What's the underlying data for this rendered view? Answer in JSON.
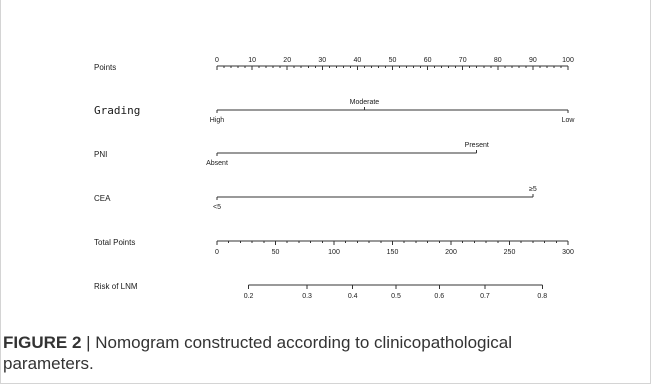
{
  "chart_data": {
    "type": "nomogram",
    "rows": [
      {
        "label": "Points",
        "kind": "scale",
        "min": 0,
        "max": 100,
        "major": [
          0,
          10,
          20,
          30,
          40,
          50,
          60,
          70,
          80,
          90,
          100
        ],
        "minor_step": 2
      },
      {
        "label": "Grading",
        "kind": "categorical",
        "levels": [
          {
            "name": "High",
            "points": 0,
            "label_side": "below"
          },
          {
            "name": "Moderate",
            "points": 42,
            "label_side": "above"
          },
          {
            "name": "Low",
            "points": 100,
            "label_side": "below"
          }
        ]
      },
      {
        "label": "PNI",
        "kind": "categorical",
        "levels": [
          {
            "name": "Absent",
            "points": 0,
            "label_side": "below"
          },
          {
            "name": "Present",
            "points": 74,
            "label_side": "above"
          }
        ]
      },
      {
        "label": "CEA",
        "kind": "categorical",
        "levels": [
          {
            "name": "<5",
            "points": 0,
            "label_side": "below"
          },
          {
            "name": "≥5",
            "points": 90,
            "label_side": "above"
          }
        ]
      },
      {
        "label": "Total Points",
        "kind": "scale",
        "min": 0,
        "max": 300,
        "major": [
          0,
          50,
          100,
          150,
          200,
          250,
          300
        ],
        "minor_step": 10
      },
      {
        "label": "Risk of LNM",
        "kind": "probability",
        "ticks": [
          {
            "label": "0.2",
            "total_points": 27
          },
          {
            "label": "0.3",
            "total_points": 77
          },
          {
            "label": "0.4",
            "total_points": 116
          },
          {
            "label": "0.5",
            "total_points": 153
          },
          {
            "label": "0.6",
            "total_points": 190
          },
          {
            "label": "0.7",
            "total_points": 229
          },
          {
            "label": "0.8",
            "total_points": 278
          }
        ]
      }
    ]
  },
  "caption": {
    "label": "FIGURE 2",
    "separator": " | ",
    "text": "Nomogram constructed according to clinicopathological parameters."
  }
}
